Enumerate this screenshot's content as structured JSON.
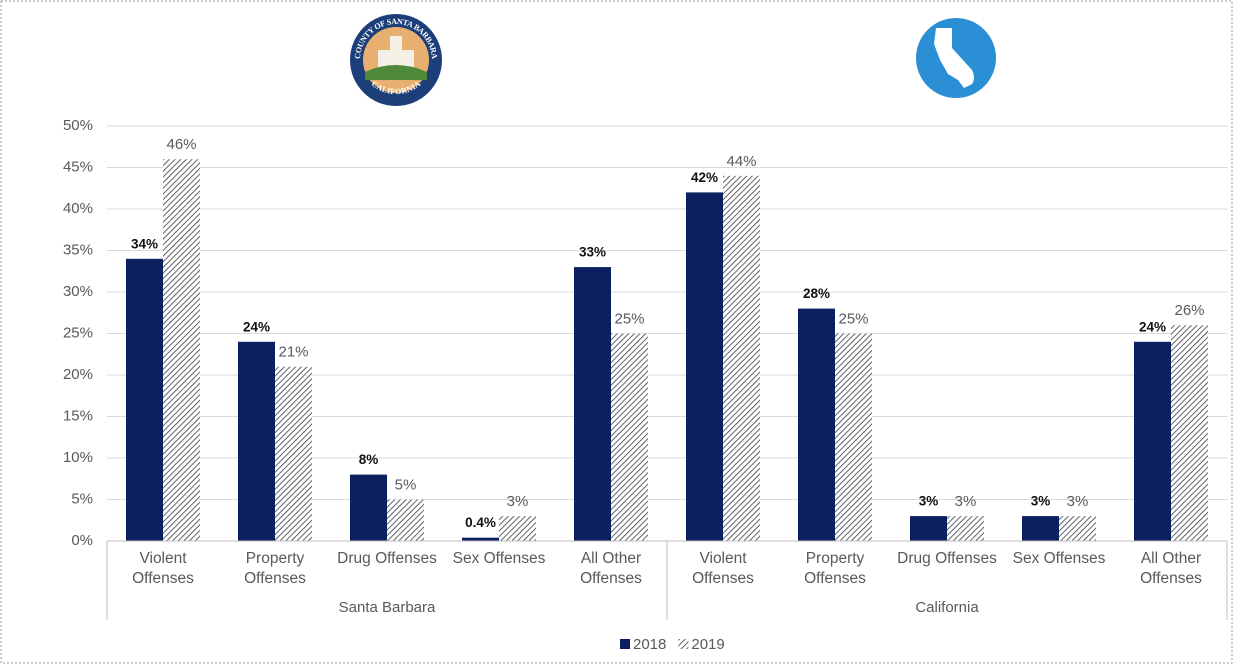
{
  "chart_data": {
    "type": "bar",
    "seal_texts": [
      "COUNTY OF SANTA BARBARA",
      "CALIFORNIA"
    ],
    "categories": [
      "Violent Offenses",
      "Property Offenses",
      "Drug Offenses",
      "Sex Offenses",
      "All Other Offenses",
      "Violent Offenses",
      "Property Offenses",
      "Drug Offenses",
      "Sex Offenses",
      "All Other Offenses"
    ],
    "groups": [
      {
        "name": "Santa Barbara",
        "size": 5
      },
      {
        "name": "California",
        "size": 5
      }
    ],
    "series": [
      {
        "name": "2018",
        "color": "#0c1f5e",
        "fill": "solid",
        "values": [
          34,
          24,
          8,
          0.4,
          33,
          42,
          28,
          3,
          3,
          24
        ],
        "value_labels": [
          "34%",
          "24%",
          "8%",
          "0.4%",
          "33%",
          "42%",
          "28%",
          "3%",
          "3%",
          "24%"
        ]
      },
      {
        "name": "2019",
        "color": "#3a3a3a",
        "fill": "hatch",
        "values": [
          46,
          21,
          5,
          3,
          25,
          44,
          25,
          3,
          3,
          26
        ],
        "value_labels": [
          "46%",
          "21%",
          "5%",
          "3%",
          "25%",
          "44%",
          "25%",
          "3%",
          "3%",
          "26%"
        ]
      }
    ],
    "ylim": [
      0,
      50
    ],
    "yticks": [
      {
        "value": 0,
        "label": "0%"
      },
      {
        "value": 5,
        "label": "5%"
      },
      {
        "value": 10,
        "label": "10%"
      },
      {
        "value": 15,
        "label": "15%"
      },
      {
        "value": 20,
        "label": "20%"
      },
      {
        "value": 25,
        "label": "25%"
      },
      {
        "value": 30,
        "label": "30%"
      },
      {
        "value": 35,
        "label": "35%"
      },
      {
        "value": 40,
        "label": "40%"
      },
      {
        "value": 45,
        "label": "45%"
      },
      {
        "value": 50,
        "label": "50%"
      }
    ],
    "grid": true,
    "legend": "bottom"
  }
}
